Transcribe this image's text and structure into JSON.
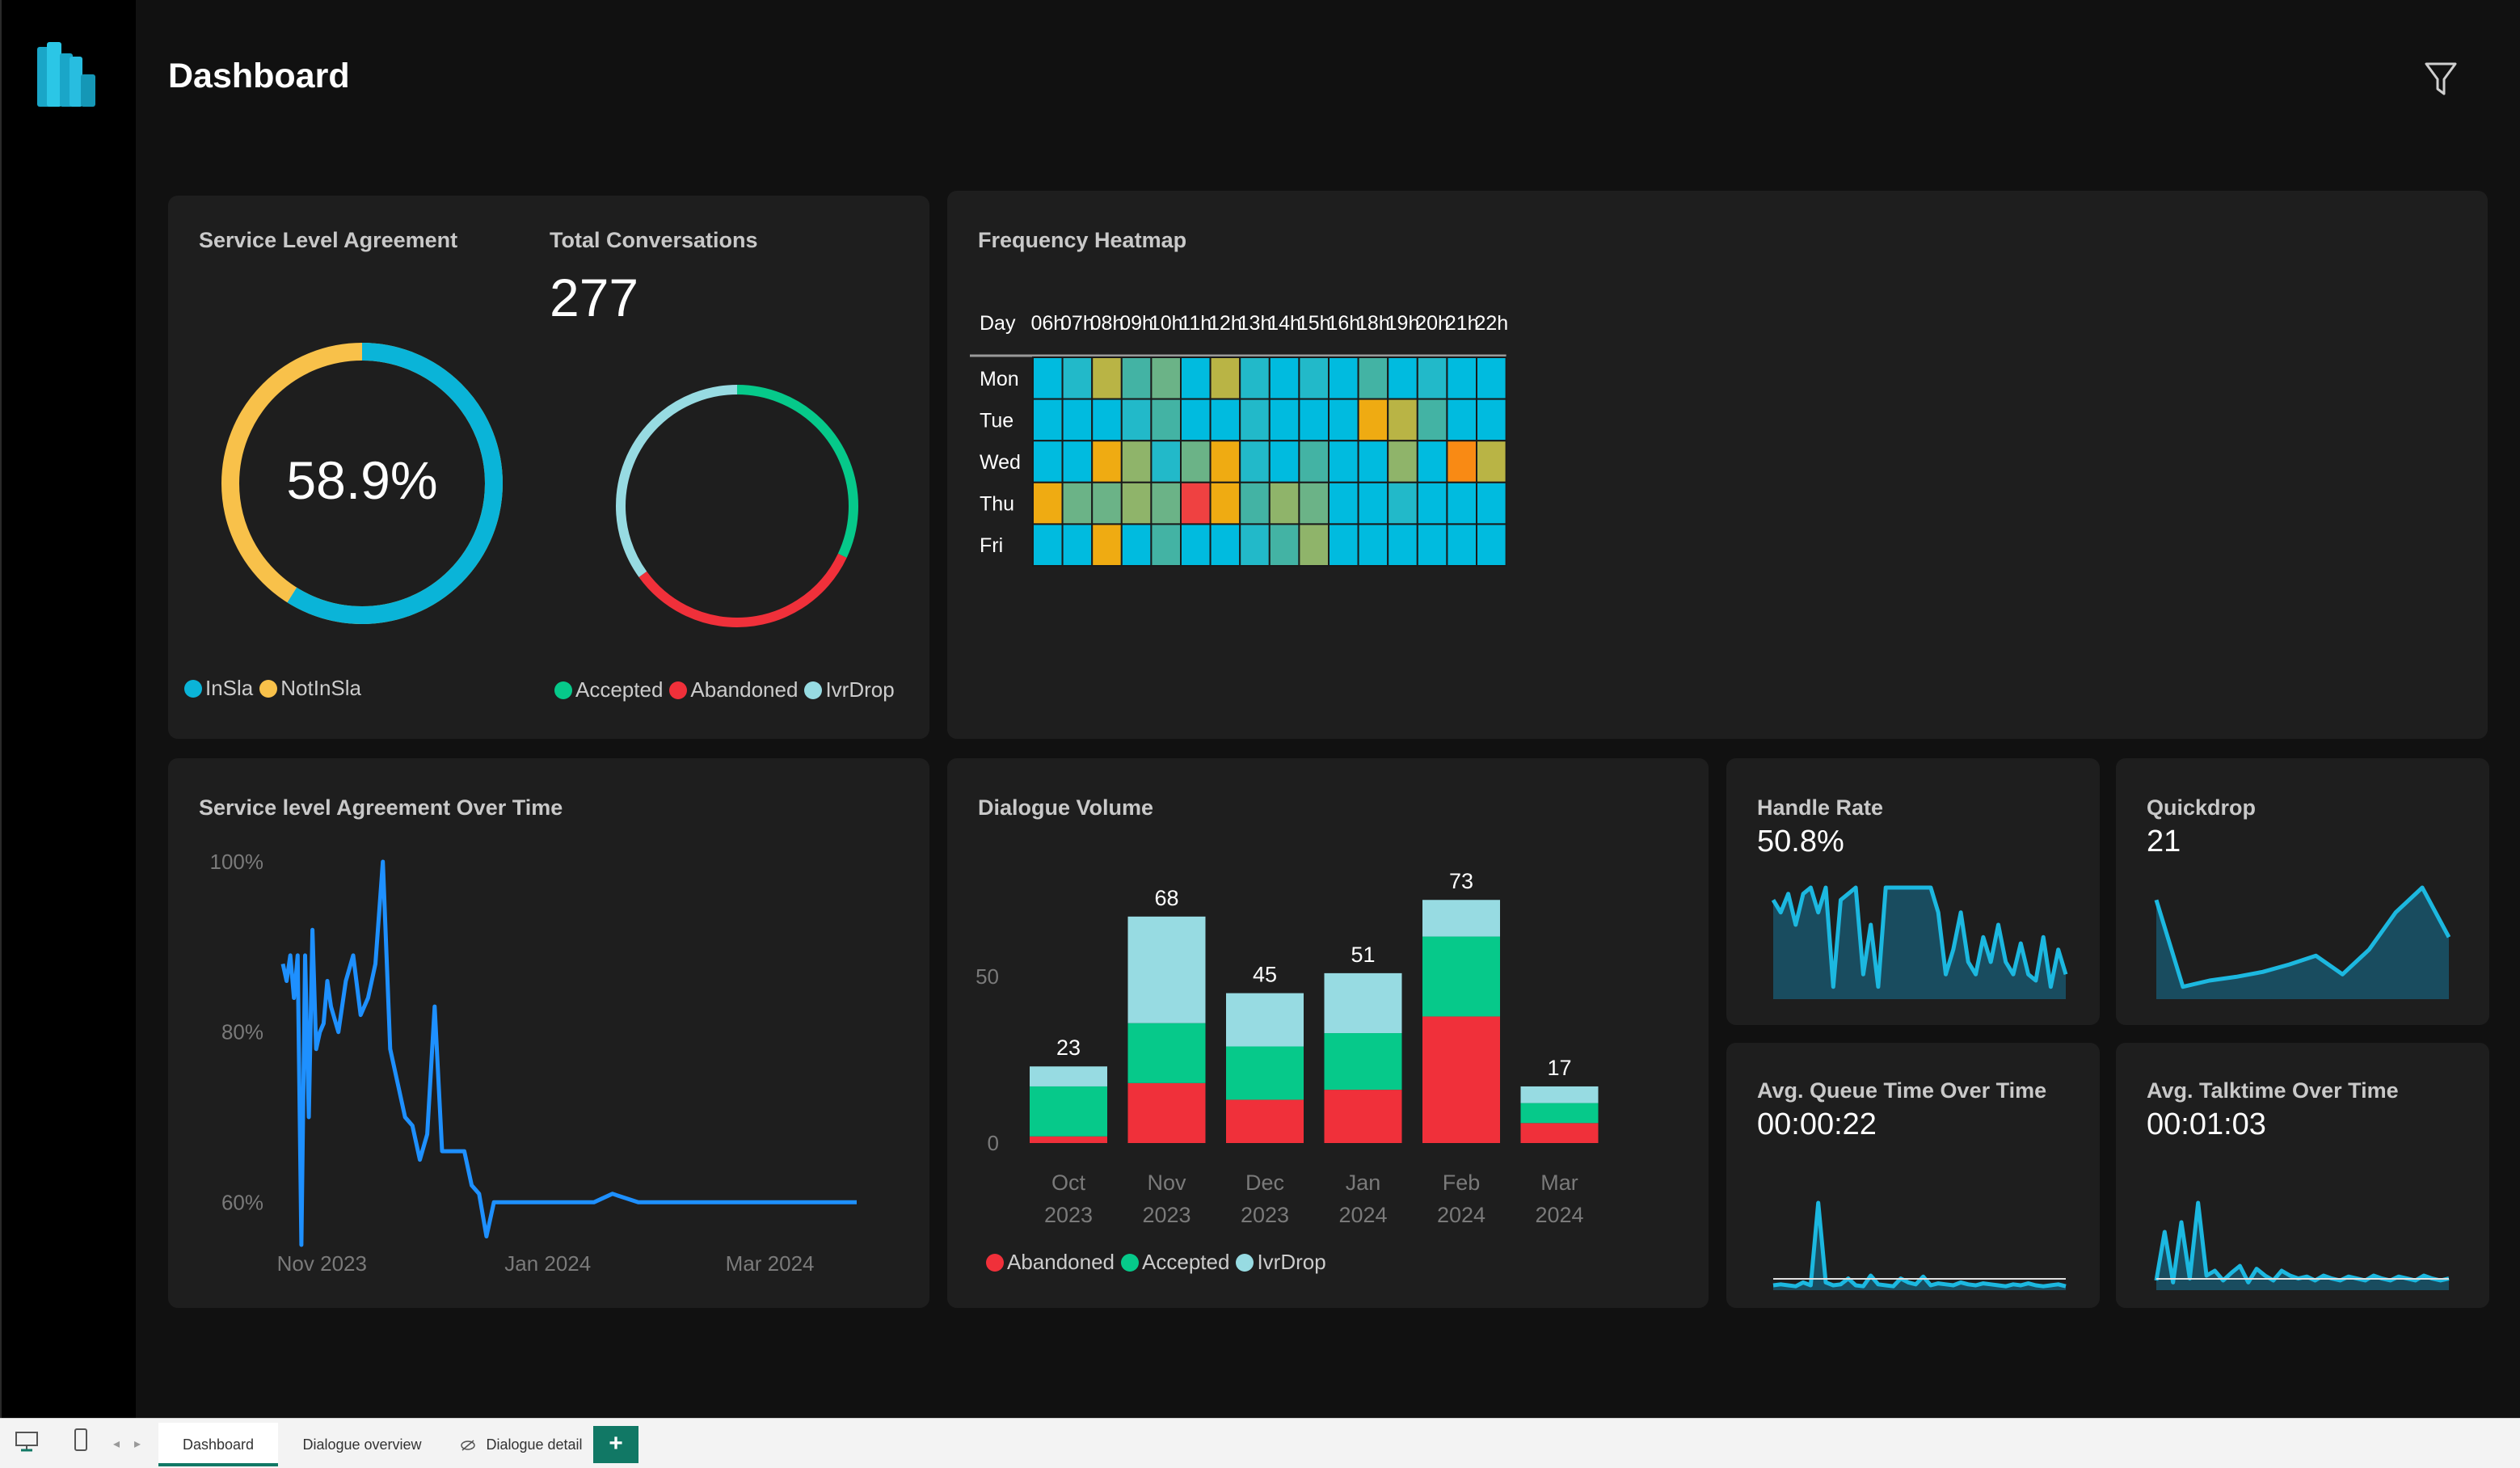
{
  "header": {
    "title": "Dashboard"
  },
  "sla": {
    "title": "Service Level Agreement",
    "value": "58.9%",
    "legend": [
      {
        "label": "InSla",
        "color": "#0ab4d8"
      },
      {
        "label": "NotInSla",
        "color": "#f8c14a"
      }
    ],
    "in_sla_fraction": 0.589
  },
  "conversations": {
    "title": "Total Conversations",
    "value": "277",
    "legend": [
      {
        "label": "Accepted",
        "color": "#06c98a"
      },
      {
        "label": "Abandoned",
        "color": "#f0303a"
      },
      {
        "label": "IvrDrop",
        "color": "#97dbe2"
      }
    ],
    "segments": [
      {
        "label": "Accepted",
        "fraction": 0.32
      },
      {
        "label": "Abandoned",
        "fraction": 0.33
      },
      {
        "label": "IvrDrop",
        "fraction": 0.35
      }
    ]
  },
  "heatmap": {
    "title": "Frequency Heatmap",
    "corner_label": "Day",
    "hours": [
      "06h",
      "07h",
      "08h",
      "09h",
      "10h",
      "11h",
      "12h",
      "13h",
      "14h",
      "15h",
      "16h",
      "18h",
      "19h",
      "20h",
      "21h",
      "22h"
    ],
    "days": [
      "Mon",
      "Tue",
      "Wed",
      "Thu",
      "Fri"
    ],
    "palette": [
      "#00bbdf",
      "#22b9c9",
      "#43b3a4",
      "#6bb387",
      "#8fb46a",
      "#b9b445",
      "#efab12",
      "#f98a14",
      "#ef4141"
    ],
    "cells": [
      [
        0,
        1,
        5,
        2,
        3,
        0,
        5,
        1,
        0,
        1,
        0,
        2,
        0,
        1,
        0,
        0
      ],
      [
        0,
        0,
        0,
        1,
        2,
        0,
        0,
        1,
        0,
        0,
        0,
        6,
        5,
        2,
        0,
        0
      ],
      [
        0,
        0,
        6,
        4,
        1,
        3,
        6,
        1,
        0,
        2,
        0,
        0,
        4,
        0,
        7,
        5
      ],
      [
        6,
        3,
        3,
        4,
        3,
        8,
        6,
        2,
        4,
        3,
        0,
        0,
        1,
        0,
        0,
        0
      ],
      [
        0,
        0,
        6,
        0,
        2,
        0,
        0,
        1,
        2,
        4,
        0,
        0,
        0,
        0,
        0,
        0
      ]
    ]
  },
  "sla_over_time": {
    "title": "Service level Agreement Over Time",
    "y_ticks": [
      "100%",
      "80%",
      "60%"
    ],
    "x_ticks": [
      "Nov 2023",
      "Jan 2024",
      "Mar 2024"
    ]
  },
  "chart_data": [
    {
      "type": "line",
      "title": "Service level Agreement Over Time",
      "xlabel": "",
      "ylabel": "",
      "ylim": [
        55,
        100
      ],
      "x": [
        "2023-10-28",
        "2023-10-29",
        "2023-10-30",
        "2023-10-31",
        "2023-11-01",
        "2023-11-02",
        "2023-11-03",
        "2023-11-04",
        "2023-11-05",
        "2023-11-06",
        "2023-11-07",
        "2023-11-08",
        "2023-11-09",
        "2023-11-10",
        "2023-11-12",
        "2023-11-14",
        "2023-11-16",
        "2023-11-18",
        "2023-11-20",
        "2023-11-22",
        "2023-11-24",
        "2023-11-26",
        "2023-11-28",
        "2023-11-30",
        "2023-12-02",
        "2023-12-04",
        "2023-12-06",
        "2023-12-08",
        "2023-12-10",
        "2023-12-12",
        "2023-12-14",
        "2023-12-16",
        "2023-12-18",
        "2023-12-20",
        "2023-12-22",
        "2023-12-24",
        "2023-12-26",
        "2023-12-28",
        "2023-12-30",
        "2024-01-03",
        "2024-01-10",
        "2024-01-20",
        "2024-01-25",
        "2024-02-01",
        "2024-02-05",
        "2024-02-10",
        "2024-02-20",
        "2024-03-01",
        "2024-03-15",
        "2024-03-31"
      ],
      "series": [
        {
          "values": [
            88,
            86,
            89,
            84,
            89,
            55,
            89,
            70,
            92,
            78,
            80,
            81,
            86,
            83,
            80,
            86,
            89,
            82,
            84,
            88,
            100,
            78,
            74,
            70,
            69,
            65,
            68,
            83,
            66,
            66,
            66,
            66,
            62,
            61,
            56,
            60,
            60,
            60,
            60,
            60,
            60,
            60,
            61,
            60,
            60,
            60,
            60,
            60,
            60,
            60
          ]
        }
      ]
    },
    {
      "type": "bar",
      "title": "Dialogue Volume",
      "categories": [
        "Oct 2023",
        "Nov 2023",
        "Dec 2023",
        "Jan 2024",
        "Feb 2024",
        "Mar 2024"
      ],
      "ylim": [
        0,
        80
      ],
      "y_ticks": [
        0,
        50
      ],
      "series": [
        {
          "name": "Abandoned",
          "values": [
            2,
            18,
            13,
            16,
            38,
            6
          ]
        },
        {
          "name": "Accepted",
          "values": [
            15,
            18,
            16,
            17,
            24,
            6
          ]
        },
        {
          "name": "IvrDrop",
          "values": [
            6,
            32,
            16,
            18,
            11,
            5
          ]
        }
      ],
      "totals": [
        23,
        68,
        45,
        51,
        73,
        17
      ]
    },
    {
      "type": "area",
      "title": "Handle Rate",
      "values": [
        80,
        70,
        85,
        60,
        85,
        90,
        70,
        90,
        10,
        80,
        85,
        90,
        20,
        60,
        10,
        90,
        90,
        90,
        90,
        90,
        90,
        90,
        70,
        20,
        40,
        70,
        30,
        20,
        50,
        30,
        60,
        30,
        20,
        45,
        20,
        15,
        50,
        10,
        40,
        20
      ]
    },
    {
      "type": "area",
      "title": "Quickdrop",
      "values": [
        80,
        10,
        15,
        18,
        22,
        28,
        35,
        20,
        40,
        70,
        90,
        50
      ]
    },
    {
      "type": "area",
      "title": "Avg. Queue Time Over Time",
      "values": [
        5,
        6,
        5,
        4,
        8,
        5,
        90,
        8,
        5,
        6,
        12,
        5,
        4,
        15,
        6,
        5,
        4,
        12,
        8,
        6,
        14,
        5,
        7,
        6,
        5,
        8,
        6,
        5,
        7,
        6,
        5,
        4,
        6,
        5,
        7,
        5,
        4,
        5,
        6,
        4
      ]
    },
    {
      "type": "area",
      "title": "Avg. Talktime Over Time",
      "values": [
        10,
        60,
        8,
        70,
        12,
        90,
        15,
        20,
        10,
        18,
        25,
        8,
        22,
        15,
        10,
        20,
        15,
        12,
        14,
        10,
        15,
        12,
        10,
        14,
        12,
        10,
        15,
        12,
        10,
        14,
        12,
        10,
        15,
        12,
        10,
        12
      ]
    }
  ],
  "dialogue_volume": {
    "title": "Dialogue Volume",
    "legend": [
      {
        "label": "Abandoned",
        "color": "#f0303a"
      },
      {
        "label": "Accepted",
        "color": "#06c98a"
      },
      {
        "label": "IvrDrop",
        "color": "#97dbe2"
      }
    ]
  },
  "handle_rate": {
    "title": "Handle Rate",
    "value": "50.8%"
  },
  "quickdrop": {
    "title": "Quickdrop",
    "value": "21"
  },
  "queue_time": {
    "title": "Avg. Queue Time Over Time",
    "value": "00:00:22"
  },
  "talk_time": {
    "title": "Avg. Talktime Over Time",
    "value": "00:01:03"
  },
  "tabs": [
    {
      "label": "Dashboard",
      "active": true
    },
    {
      "label": "Dialogue overview",
      "active": false
    },
    {
      "label": "Dialogue detail",
      "active": false
    }
  ],
  "tabs_add": "+",
  "colors": {
    "accent": "#0ab4d8",
    "line": "#1e90ff",
    "sparkline": "#1cb8e0",
    "sparkfill": "#17607a"
  }
}
